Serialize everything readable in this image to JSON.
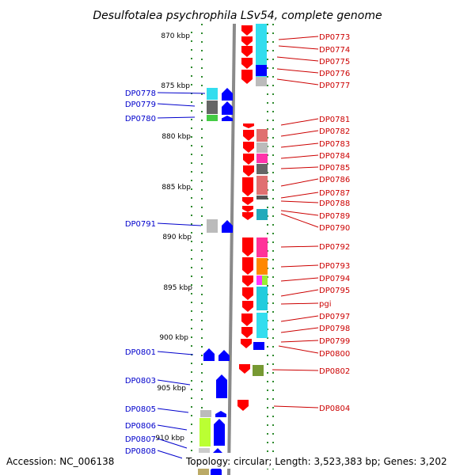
{
  "title": "Desulfotalea psychrophila LSv54, complete genome",
  "footer": {
    "accession": "Accession: NC_006138",
    "topology": "Topology: circular; Length: 3,523,383 bp; Genes: 3,202"
  },
  "colors": {
    "forward_arrow": "#0000ff",
    "reverse_arrow": "#ff0000",
    "left_label": "#0000cc",
    "right_label": "#cc0000",
    "axis_tick": "#2e8b2e",
    "backbone": "#888888"
  },
  "ticks": [
    "870 kbp",
    "875 kbp",
    "880 kbp",
    "885 kbp",
    "890 kbp",
    "895 kbp",
    "900 kbp",
    "905 kbp",
    "910 kbp"
  ],
  "left_genes": [
    "DP0778",
    "DP0779",
    "DP0780",
    "DP0791",
    "DP0801",
    "DP0803",
    "DP0805",
    "DP0806",
    "DP0807",
    "DP0808"
  ],
  "right_genes": [
    "DP0773",
    "DP0774",
    "DP0775",
    "DP0776",
    "DP0777",
    "DP0781",
    "DP0782",
    "DP0783",
    "DP0784",
    "DP0785",
    "DP0786",
    "DP0787",
    "DP0788",
    "DP0789",
    "DP0790",
    "DP0792",
    "DP0793",
    "DP0794",
    "DP0795",
    "pgi",
    "DP0797",
    "DP0798",
    "DP0799",
    "DP0800",
    "DP0802",
    "DP0804"
  ]
}
